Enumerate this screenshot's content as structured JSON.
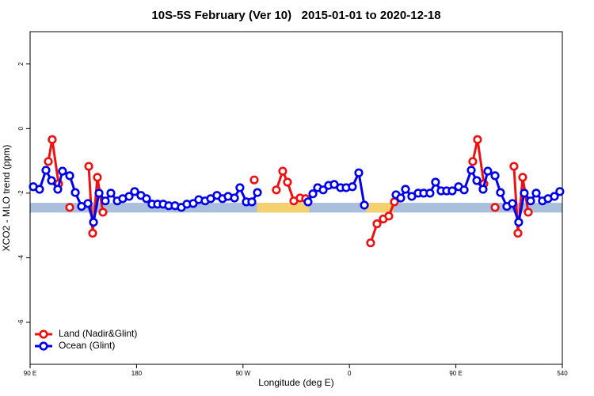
{
  "chart_data": {
    "type": "line",
    "title": "10S-5S February (Ver 10)   2015-01-01 to 2020-12-18",
    "xlabel": "Longitude (deg E)",
    "ylabel": "XCO2 - MLO trend (ppm)",
    "xlim": [
      90,
      540
    ],
    "ylim": [
      -7.3,
      3
    ],
    "xticks": [
      {
        "value": 90,
        "label": "90 E"
      },
      180,
      {
        "value": 270,
        "label": "90 W"
      },
      {
        "value": 360,
        "label": "0"
      },
      {
        "value": 450,
        "label": "90 E"
      },
      540
    ],
    "yticks": [
      -6,
      -4,
      -2,
      0,
      2
    ],
    "legend": "bottom-left",
    "band": {
      "ymin": -2.6,
      "ymax": -2.3,
      "color": "#a9bfdc",
      "land_color": "#f5d06e",
      "land_spans": [
        [
          282,
          326
        ],
        [
          374,
          397
        ]
      ]
    },
    "series": [
      {
        "name": "Land (Nadir&Glint)",
        "color": "#ee1111",
        "x": [
          105.4,
          108.7,
          114.1,
          null,
          123.5,
          null,
          139.6,
          142.9,
          146.9,
          151.6,
          null,
          279.5,
          null,
          298.2,
          303.6,
          307.6,
          313.0,
          318.3,
          323.0,
          null,
          377.9,
          383.3,
          388.6,
          393.3,
          398.0,
          null,
          464.3,
          468.3,
          473.7,
          null,
          483.1,
          null,
          499.1,
          502.5,
          506.5,
          511.2
        ],
        "values": [
          -1.02,
          -0.34,
          -1.71,
          null,
          -2.44,
          null,
          -1.17,
          -3.24,
          -1.51,
          -2.59,
          null,
          -1.59,
          null,
          -1.9,
          -1.32,
          -1.66,
          -2.24,
          -2.15,
          -2.17,
          null,
          -3.54,
          -2.95,
          -2.8,
          -2.71,
          -2.27,
          null,
          -1.02,
          -0.34,
          -1.71,
          null,
          -2.44,
          null,
          -1.17,
          -3.24,
          -1.51,
          -2.59
        ]
      },
      {
        "name": "Ocean (Glint)",
        "color": "#0000ee",
        "x": [
          92.7,
          98.0,
          103.4,
          108.1,
          113.4,
          117.4,
          123.5,
          128.2,
          133.5,
          138.9,
          143.6,
          148.3,
          153.6,
          158.3,
          163.7,
          168.3,
          173.7,
          178.4,
          183.7,
          188.4,
          193.1,
          197.8,
          202.5,
          207.2,
          212.5,
          217.9,
          222.6,
          227.9,
          232.6,
          238.0,
          242.7,
          248.0,
          252.7,
          257.4,
          262.8,
          267.4,
          272.8,
          277.5,
          282.2,
          null,
          325.0,
          329.1,
          333.1,
          337.8,
          342.4,
          347.1,
          352.5,
          357.2,
          362.5,
          367.9,
          372.6,
          null,
          399.4,
          403.4,
          407.4,
          412.7,
          418.1,
          422.8,
          428.1,
          432.8,
          437.5,
          442.2,
          446.9,
          452.3,
          457.0,
          463.0,
          467.7,
          473.0,
          477.0,
          483.1,
          487.7,
          493.1,
          497.8,
          503.1,
          507.8,
          513.2,
          517.9,
          523.2,
          527.9,
          533.3,
          537.9
        ],
        "values": [
          -1.8,
          -1.88,
          -1.29,
          -1.61,
          -1.88,
          -1.32,
          -1.46,
          -1.98,
          -2.41,
          -2.32,
          -2.9,
          -2.0,
          -2.24,
          -2.0,
          -2.24,
          -2.17,
          -2.1,
          -1.95,
          -2.07,
          -2.17,
          -2.34,
          -2.34,
          -2.34,
          -2.39,
          -2.39,
          -2.44,
          -2.34,
          -2.32,
          -2.2,
          -2.24,
          -2.17,
          -2.07,
          -2.17,
          -2.1,
          -2.15,
          -1.83,
          -2.27,
          -2.27,
          -1.98,
          null,
          -2.27,
          -2.02,
          -1.83,
          -1.9,
          -1.76,
          -1.73,
          -1.83,
          -1.83,
          -1.8,
          -1.37,
          -2.37,
          null,
          -2.05,
          -2.15,
          -1.88,
          -2.1,
          -2.0,
          -2.0,
          -2.0,
          -1.66,
          -1.93,
          -1.93,
          -1.93,
          -1.8,
          -1.9,
          -1.29,
          -1.61,
          -1.88,
          -1.32,
          -1.46,
          -1.98,
          -2.41,
          -2.32,
          -2.9,
          -2.0,
          -2.24,
          -2.0,
          -2.24,
          -2.17,
          -2.1,
          -1.95
        ]
      }
    ]
  }
}
